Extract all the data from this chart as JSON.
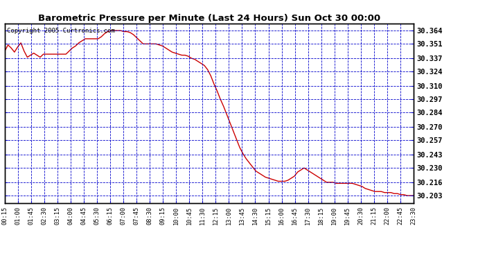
{
  "title": "Barometric Pressure per Minute (Last 24 Hours) Sun Oct 30 00:00",
  "copyright": "Copyright 2005 Curtronics.com",
  "background_color": "#ffffff",
  "plot_bg_color": "#ffffff",
  "line_color": "#cc0000",
  "grid_color": "#0000cc",
  "yticks": [
    30.203,
    30.216,
    30.23,
    30.243,
    30.257,
    30.27,
    30.284,
    30.297,
    30.31,
    30.324,
    30.337,
    30.351,
    30.364
  ],
  "ylim": [
    30.196,
    30.371
  ],
  "xtick_labels": [
    "00:15",
    "01:00",
    "01:45",
    "02:30",
    "03:15",
    "04:00",
    "04:45",
    "05:30",
    "06:15",
    "07:00",
    "07:45",
    "08:30",
    "09:15",
    "10:00",
    "10:45",
    "11:30",
    "12:15",
    "13:00",
    "13:45",
    "14:30",
    "15:15",
    "16:00",
    "16:45",
    "17:30",
    "18:15",
    "19:00",
    "19:45",
    "20:30",
    "21:15",
    "22:00",
    "22:45",
    "23:30"
  ],
  "pressure_data": [
    30.344,
    30.35,
    30.347,
    30.343,
    30.348,
    30.352,
    30.344,
    30.338,
    30.34,
    30.342,
    30.34,
    30.338,
    30.341,
    30.341,
    30.341,
    30.341,
    30.341,
    30.341,
    30.341,
    30.341,
    30.344,
    30.347,
    30.349,
    30.352,
    30.354,
    30.356,
    30.356,
    30.356,
    30.356,
    30.356,
    30.358,
    30.361,
    30.363,
    30.364,
    30.364,
    30.364,
    30.364,
    30.363,
    30.363,
    30.362,
    30.36,
    30.357,
    30.354,
    30.351,
    30.351,
    30.351,
    30.351,
    30.351,
    30.35,
    30.349,
    30.347,
    30.345,
    30.343,
    30.342,
    30.341,
    30.34,
    30.34,
    30.339,
    30.337,
    30.336,
    30.334,
    30.332,
    30.33,
    30.326,
    30.32,
    30.312,
    30.305,
    30.297,
    30.29,
    30.282,
    30.274,
    30.266,
    30.258,
    30.25,
    30.244,
    30.239,
    30.235,
    30.231,
    30.227,
    30.225,
    30.223,
    30.221,
    30.22,
    30.219,
    30.218,
    30.217,
    30.217,
    30.217,
    30.218,
    30.22,
    30.222,
    30.226,
    30.228,
    30.23,
    30.228,
    30.226,
    30.224,
    30.222,
    30.22,
    30.218,
    30.216,
    30.216,
    30.216,
    30.215,
    30.215,
    30.215,
    30.215,
    30.215,
    30.215,
    30.214,
    30.213,
    30.212,
    30.21,
    30.209,
    30.208,
    30.207,
    30.207,
    30.207,
    30.206,
    30.206,
    30.206,
    30.205,
    30.205,
    30.204,
    30.204,
    30.203,
    30.203,
    30.203
  ]
}
